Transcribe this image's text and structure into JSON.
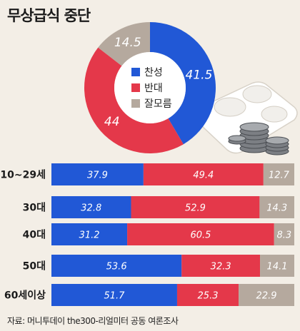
{
  "title": "무상급식 중단",
  "source": "자료: 머니투데이 the300-리얼미터 공동 여론조사",
  "colors": {
    "support": "#2158d6",
    "oppose": "#e4384a",
    "unknown": "#b5a99e"
  },
  "chart_data": [
    {
      "type": "pie",
      "legend_position": "center",
      "slices": [
        {
          "label": "찬성",
          "value": 41.5,
          "color": "#2158d6"
        },
        {
          "label": "반대",
          "value": 44,
          "color": "#e4384a"
        },
        {
          "label": "잘모름",
          "value": 14.5,
          "color": "#b5a99e"
        }
      ]
    },
    {
      "type": "bar",
      "orientation": "horizontal",
      "stacked": true,
      "percent": true,
      "categories": [
        "10~29세",
        "30대",
        "40대",
        "50대",
        "60세이상"
      ],
      "series": [
        {
          "name": "찬성",
          "color": "#2158d6",
          "values": [
            37.9,
            32.8,
            31.2,
            53.6,
            51.7
          ]
        },
        {
          "name": "반대",
          "color": "#e4384a",
          "values": [
            49.4,
            52.9,
            60.5,
            32.3,
            25.3
          ]
        },
        {
          "name": "잘모름",
          "color": "#b5a99e",
          "values": [
            12.7,
            14.3,
            8.3,
            14.1,
            22.9
          ]
        }
      ]
    }
  ]
}
